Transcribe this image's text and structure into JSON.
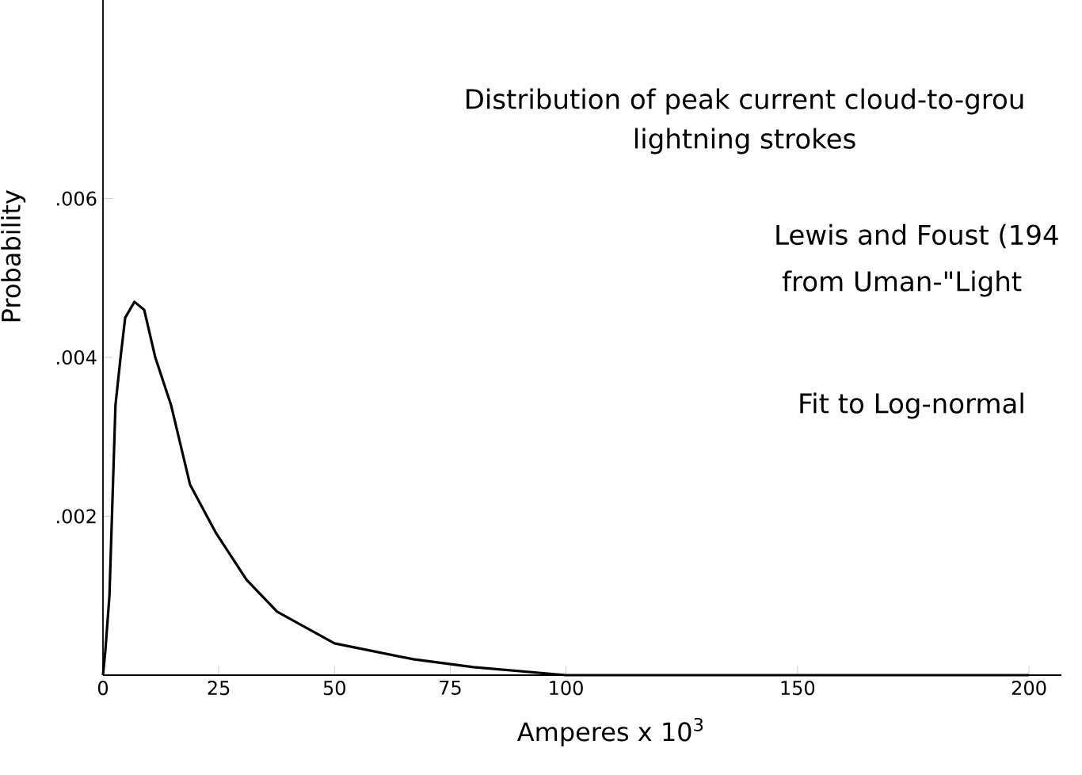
{
  "chart_data": {
    "type": "line",
    "title": "Distribution of peak current cloud-to-grou",
    "subtitle": "lightning strokes",
    "xlabel": "Amperes x 10$^{3}$",
    "ylabel": "Probability",
    "annotations": [
      "Lewis and Foust (194",
      "from Uman-\"Light",
      "Fit to Log-normal"
    ],
    "x": [
      0,
      0.5,
      1.4,
      2.7,
      3.8,
      4.8,
      6.8,
      8.9,
      11.3,
      14.7,
      18.8,
      24.3,
      31,
      37.6,
      50,
      67,
      80,
      100,
      130,
      200
    ],
    "series": [
      {
        "color": "#000000",
        "values": [
          0,
          0.0003,
          0.001,
          0.0034,
          0.004,
          0.0045,
          0.0047,
          0.0046,
          0.004,
          0.0034,
          0.0024,
          0.0018,
          0.0012,
          0.0008,
          0.0004,
          0.0002,
          0.0001,
          0,
          0,
          0
        ]
      }
    ],
    "xlim": [
      0,
      207
    ],
    "ylim": [
      0,
      0.0085
    ],
    "xticks": [
      0,
      25,
      50,
      75,
      100,
      150,
      200
    ],
    "yticks": [
      {
        "value": 0.002,
        "label": ".002"
      },
      {
        "value": 0.004,
        "label": ".004"
      },
      {
        "value": 0.006,
        "label": ".006"
      }
    ],
    "marker": "none",
    "line_style": "solid"
  }
}
